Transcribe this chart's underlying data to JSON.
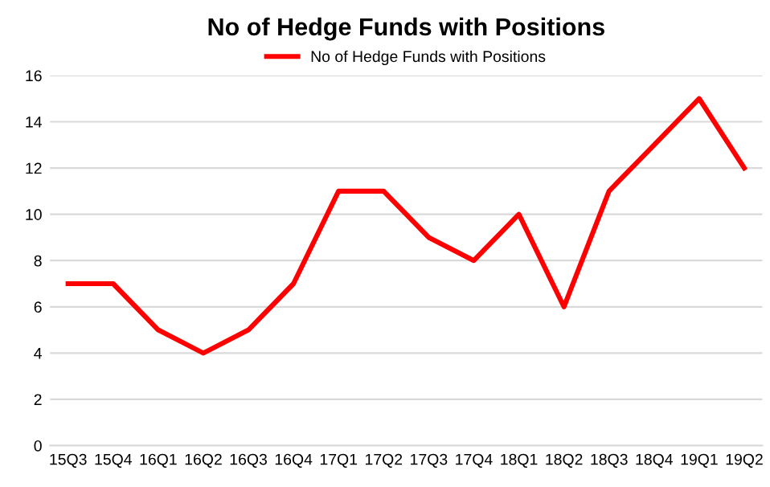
{
  "chart_data": {
    "type": "line",
    "title": "No of Hedge Funds with Positions",
    "categories": [
      "15Q3",
      "15Q4",
      "16Q1",
      "16Q2",
      "16Q3",
      "16Q4",
      "17Q1",
      "17Q2",
      "17Q3",
      "17Q4",
      "18Q1",
      "18Q2",
      "18Q3",
      "18Q4",
      "19Q1",
      "19Q2"
    ],
    "series": [
      {
        "name": "No of Hedge Funds with Positions",
        "color": "#ff0000",
        "values": [
          7,
          7,
          5,
          4,
          5,
          7,
          11,
          11,
          9,
          8,
          10,
          6,
          11,
          13,
          15,
          12
        ]
      }
    ],
    "ylim": [
      0,
      16
    ],
    "yticks": [
      0,
      2,
      4,
      6,
      8,
      10,
      12,
      14,
      16
    ],
    "grid": "y",
    "legend": "top"
  }
}
